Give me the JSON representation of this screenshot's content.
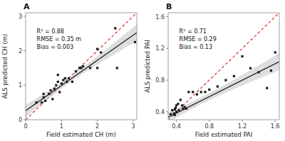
{
  "chart_data": [
    {
      "type": "scatter",
      "title": "A",
      "x_label": "Field estimated CH (m)",
      "y_label": "ALS predicted CH (m)",
      "annotations": [
        "R² = 0.88",
        "RMSE = 0.35 m",
        "Bias = 0.003"
      ],
      "xlim": [
        0,
        3.1
      ],
      "ylim": [
        0,
        3.1
      ],
      "xticks": [
        0,
        1,
        2,
        3
      ],
      "yticks": [
        0,
        1,
        2,
        3
      ],
      "grid": false,
      "series": [
        {
          "type": "line",
          "color": "#d93030",
          "line_style": "dashed",
          "x": [
            0,
            3.1
          ],
          "values": [
            0,
            3.1
          ]
        },
        {
          "type": "area",
          "color": "#c8c8c8",
          "x": [
            0,
            0.31,
            0.62,
            0.93,
            1.24,
            1.55,
            1.86,
            2.17,
            2.48,
            2.79,
            3.1
          ],
          "values": [
            0.4338,
            0.6281,
            0.8259,
            1.0306,
            1.248,
            1.4817,
            1.7286,
            1.9829,
            2.241,
            2.5012,
            2.7625
          ],
          "lower": [
            0.0862,
            0.3445,
            0.5993,
            0.8472,
            1.0824,
            1.3013,
            1.507,
            1.7053,
            1.8998,
            2.0922,
            2.2835
          ]
        },
        {
          "type": "line",
          "color": "#1a1a1a",
          "line_style": "solid",
          "x": [
            0,
            3.1
          ],
          "values": [
            0.26,
            2.523
          ]
        },
        {
          "type": "scatter",
          "color": "#1a1a1a",
          "marker": "square",
          "x": [
            0.3,
            0.45,
            0.5,
            0.55,
            0.65,
            0.7,
            0.75,
            0.8,
            0.85,
            0.9,
            0.95,
            1.0,
            1.05,
            1.1,
            1.15,
            1.2,
            1.3,
            1.4,
            1.5,
            1.6,
            2.0,
            2.1,
            2.5,
            2.55,
            3.05,
            0.5,
            0.9,
            1.8,
            2.0,
            1.55
          ],
          "values": [
            0.5,
            0.5,
            0.65,
            0.55,
            0.75,
            0.85,
            0.6,
            0.9,
            1.0,
            1.1,
            0.8,
            1.05,
            1.15,
            1.2,
            1.1,
            1.2,
            1.1,
            1.4,
            1.5,
            1.55,
            2.05,
            1.95,
            2.65,
            1.5,
            2.25,
            0.75,
            1.3,
            1.5,
            1.5,
            1.5
          ]
        }
      ]
    },
    {
      "type": "scatter",
      "title": "B",
      "x_label": "Field estimated PAI",
      "y_label": "ALS predicted PAI",
      "annotations": [
        "R² = 0.71",
        "RMSE = 0.29",
        "Bias = 0.13"
      ],
      "xlim": [
        0.3,
        1.65
      ],
      "ylim": [
        0.3,
        1.65
      ],
      "xticks": [
        0.4,
        0.8,
        1.2,
        1.6
      ],
      "yticks": [
        0.4,
        0.8,
        1.2,
        1.6
      ],
      "grid": false,
      "series": [
        {
          "type": "line",
          "color": "#d93030",
          "line_style": "dashed",
          "x": [
            0.3,
            1.65
          ],
          "values": [
            0.3,
            1.65
          ]
        },
        {
          "type": "area",
          "color": "#c8c8c8",
          "x": [
            0.3,
            0.435,
            0.57,
            0.705,
            0.84,
            0.975,
            1.11,
            1.245,
            1.38,
            1.515,
            1.65
          ],
          "values": [
            0.3946,
            0.4551,
            0.5181,
            0.5851,
            0.6569,
            0.733,
            0.8121,
            0.8932,
            0.9754,
            1.0584,
            1.1418
          ],
          "lower": [
            0.2674,
            0.3473,
            0.4247,
            0.4981,
            0.5667,
            0.631,
            0.6923,
            0.7516,
            0.8098,
            0.8672,
            0.9242
          ]
        },
        {
          "type": "line",
          "color": "#1a1a1a",
          "line_style": "solid",
          "x": [
            0.3,
            1.65
          ],
          "values": [
            0.331,
            1.033
          ]
        },
        {
          "type": "scatter",
          "color": "#1a1a1a",
          "marker": "square",
          "x": [
            0.33,
            0.35,
            0.37,
            0.38,
            0.38,
            0.39,
            0.4,
            0.4,
            0.42,
            0.43,
            0.45,
            0.47,
            0.48,
            0.5,
            0.52,
            0.55,
            0.6,
            0.65,
            0.7,
            0.75,
            0.8,
            0.9,
            1.0,
            1.1,
            1.2,
            1.3,
            1.4,
            1.5,
            1.55,
            1.6
          ],
          "values": [
            0.37,
            0.42,
            0.38,
            0.36,
            0.43,
            0.45,
            0.4,
            0.48,
            0.5,
            0.42,
            0.55,
            0.48,
            0.44,
            0.46,
            0.44,
            0.65,
            0.65,
            0.62,
            0.65,
            0.65,
            0.68,
            0.72,
            0.8,
            0.85,
            1.1,
            0.95,
            0.9,
            0.7,
            0.92,
            1.15
          ]
        }
      ]
    }
  ]
}
